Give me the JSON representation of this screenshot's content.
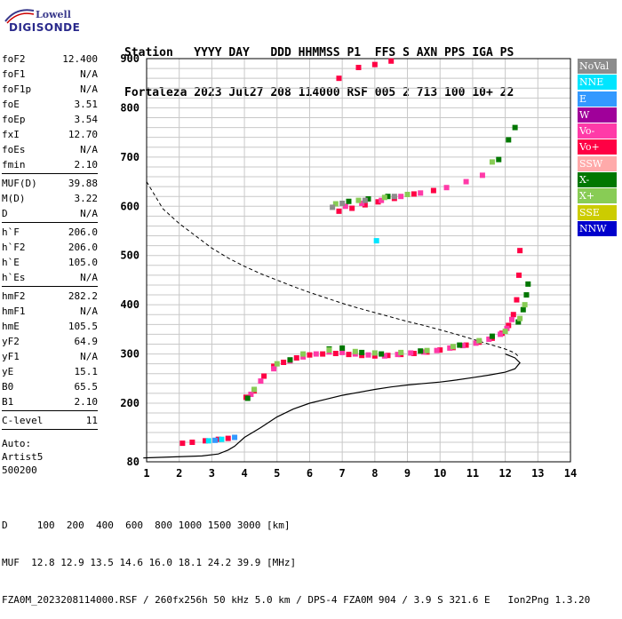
{
  "logo": {
    "line1": "Lowell",
    "line2": "DIGISONDE"
  },
  "header": {
    "line1": "Station   YYYY DAY   DDD HHMMSS P1  FFS S AXN PPS IGA PS",
    "line2": "Fortaleza 2023 Jul27 208 114000 RSF 005 2 713 100 10+ 22"
  },
  "params": {
    "group1": [
      {
        "k": "foF2",
        "v": "12.400"
      },
      {
        "k": "foF1",
        "v": "N/A"
      },
      {
        "k": "foF1p",
        "v": "N/A"
      },
      {
        "k": "foE",
        "v": "3.51"
      },
      {
        "k": "foEp",
        "v": "3.54"
      },
      {
        "k": "fxI",
        "v": "12.70"
      },
      {
        "k": "foEs",
        "v": "N/A"
      },
      {
        "k": "fmin",
        "v": "2.10"
      }
    ],
    "group2": [
      {
        "k": "MUF(D)",
        "v": "39.88"
      },
      {
        "k": "M(D)",
        "v": "3.22"
      },
      {
        "k": "D",
        "v": "N/A"
      }
    ],
    "group3": [
      {
        "k": "h`F",
        "v": "206.0"
      },
      {
        "k": "h`F2",
        "v": "206.0"
      },
      {
        "k": "h`E",
        "v": "105.0"
      },
      {
        "k": "h`Es",
        "v": "N/A"
      }
    ],
    "group4": [
      {
        "k": "hmF2",
        "v": "282.2"
      },
      {
        "k": "hmF1",
        "v": "N/A"
      },
      {
        "k": "hmE",
        "v": "105.5"
      },
      {
        "k": "yF2",
        "v": "64.9"
      },
      {
        "k": "yF1",
        "v": "N/A"
      },
      {
        "k": "yE",
        "v": "15.1"
      },
      {
        "k": "B0",
        "v": "65.5"
      },
      {
        "k": "B1",
        "v": "2.10"
      }
    ],
    "group5": [
      {
        "k": "C-level",
        "v": "11"
      }
    ],
    "auto": [
      "Auto:",
      "Artist5",
      "500200"
    ]
  },
  "legend": [
    {
      "label": "NoVal",
      "color": "#8c8c8c"
    },
    {
      "label": "NNE",
      "color": "#00e5ff"
    },
    {
      "label": "E",
      "color": "#3399ff"
    },
    {
      "label": "W",
      "color": "#a0009a"
    },
    {
      "label": "Vo-",
      "color": "#ff3aa8"
    },
    {
      "label": "Vo+",
      "color": "#ff0044"
    },
    {
      "label": "SSW",
      "color": "#ffaaaa"
    },
    {
      "label": "X-",
      "color": "#007700"
    },
    {
      "label": "X+",
      "color": "#88cc55"
    },
    {
      "label": "SSE",
      "color": "#cccc00"
    },
    {
      "label": "NNW",
      "color": "#0000cc"
    }
  ],
  "footer": {
    "line1": "D     100  200  400  600  800 1000 1500 3000 [km]",
    "line2": "MUF  12.8 12.9 13.5 14.6 16.0 18.1 24.2 39.9 [MHz]",
    "line3": "FZA0M_2023208114000.RSF / 260fx256h 50 kHz 5.0 km / DPS-4 FZA0M 904 / 3.9 S 321.6 E   Ion2Png 1.3.20"
  },
  "chart_data": {
    "type": "scatter",
    "xlabel": "",
    "ylabel": "",
    "xlim": [
      1,
      14
    ],
    "ylim": [
      80,
      900
    ],
    "grid": true,
    "xticks": [
      1,
      2,
      3,
      4,
      5,
      6,
      7,
      8,
      9,
      10,
      11,
      12,
      13,
      14
    ],
    "yticks": [
      80,
      200,
      300,
      400,
      500,
      600,
      700,
      800,
      900
    ],
    "series": [
      {
        "name": "Vo+",
        "color": "#ff0044",
        "points": [
          [
            2.1,
            118
          ],
          [
            2.4,
            120
          ],
          [
            2.8,
            123
          ],
          [
            3.2,
            126
          ],
          [
            3.5,
            128
          ],
          [
            4.05,
            212
          ],
          [
            4.3,
            225
          ],
          [
            4.6,
            255
          ],
          [
            4.9,
            275
          ],
          [
            5.2,
            283
          ],
          [
            5.6,
            292
          ],
          [
            6.0,
            298
          ],
          [
            6.4,
            300
          ],
          [
            6.8,
            301
          ],
          [
            7.2,
            299
          ],
          [
            7.6,
            297
          ],
          [
            8.0,
            296
          ],
          [
            8.4,
            297
          ],
          [
            8.8,
            299
          ],
          [
            9.2,
            301
          ],
          [
            9.6,
            304
          ],
          [
            10.0,
            308
          ],
          [
            10.4,
            313
          ],
          [
            10.8,
            318
          ],
          [
            11.2,
            324
          ],
          [
            11.6,
            332
          ],
          [
            11.9,
            342
          ],
          [
            12.1,
            358
          ],
          [
            12.25,
            380
          ],
          [
            12.35,
            410
          ],
          [
            12.42,
            460
          ],
          [
            12.45,
            510
          ],
          [
            6.9,
            590
          ],
          [
            7.3,
            596
          ],
          [
            7.7,
            603
          ],
          [
            8.1,
            609
          ],
          [
            8.6,
            616
          ],
          [
            9.2,
            625
          ],
          [
            9.8,
            632
          ],
          [
            6.9,
            860
          ],
          [
            7.5,
            882
          ],
          [
            8.0,
            888
          ],
          [
            8.5,
            895
          ]
        ]
      },
      {
        "name": "Vo-",
        "color": "#ff3aa8",
        "points": [
          [
            4.2,
            218
          ],
          [
            4.5,
            245
          ],
          [
            4.9,
            270
          ],
          [
            5.4,
            286
          ],
          [
            5.8,
            294
          ],
          [
            6.2,
            300
          ],
          [
            6.6,
            304
          ],
          [
            7.0,
            303
          ],
          [
            7.4,
            300
          ],
          [
            7.8,
            298
          ],
          [
            8.3,
            296
          ],
          [
            8.7,
            299
          ],
          [
            9.1,
            302
          ],
          [
            9.5,
            304
          ],
          [
            9.9,
            307
          ],
          [
            10.3,
            312
          ],
          [
            10.7,
            317
          ],
          [
            11.1,
            322
          ],
          [
            11.5,
            330
          ],
          [
            11.85,
            340
          ],
          [
            12.05,
            352
          ],
          [
            12.2,
            370
          ],
          [
            7.1,
            600
          ],
          [
            7.6,
            606
          ],
          [
            8.2,
            612
          ],
          [
            8.8,
            620
          ],
          [
            9.4,
            627
          ],
          [
            10.2,
            638
          ],
          [
            10.8,
            650
          ],
          [
            11.3,
            663
          ]
        ]
      },
      {
        "name": "X-",
        "color": "#007700",
        "points": [
          [
            4.1,
            210
          ],
          [
            5.4,
            288
          ],
          [
            6.6,
            310
          ],
          [
            7.0,
            312
          ],
          [
            7.6,
            303
          ],
          [
            8.2,
            300
          ],
          [
            9.4,
            306
          ],
          [
            10.6,
            318
          ],
          [
            11.6,
            336
          ],
          [
            12.4,
            365
          ],
          [
            12.55,
            390
          ],
          [
            12.65,
            420
          ],
          [
            12.7,
            442
          ],
          [
            7.2,
            610
          ],
          [
            7.8,
            615
          ],
          [
            8.4,
            620
          ],
          [
            11.8,
            695
          ],
          [
            12.1,
            735
          ],
          [
            12.3,
            760
          ]
        ]
      },
      {
        "name": "X+",
        "color": "#88cc55",
        "points": [
          [
            4.3,
            228
          ],
          [
            5.0,
            280
          ],
          [
            5.8,
            300
          ],
          [
            6.6,
            308
          ],
          [
            7.4,
            305
          ],
          [
            8.0,
            302
          ],
          [
            8.8,
            303
          ],
          [
            9.6,
            307
          ],
          [
            10.4,
            315
          ],
          [
            11.2,
            327
          ],
          [
            12.0,
            346
          ],
          [
            12.45,
            372
          ],
          [
            12.6,
            400
          ],
          [
            6.8,
            605
          ],
          [
            7.5,
            612
          ],
          [
            8.3,
            618
          ],
          [
            9.0,
            624
          ],
          [
            11.6,
            690
          ]
        ]
      },
      {
        "name": "NNE",
        "color": "#00e5ff",
        "points": [
          [
            2.9,
            123
          ],
          [
            3.3,
            126
          ],
          [
            8.05,
            530
          ]
        ]
      },
      {
        "name": "E",
        "color": "#3399ff",
        "points": [
          [
            3.1,
            124
          ],
          [
            3.7,
            130
          ]
        ]
      },
      {
        "name": "NoVal",
        "color": "#8c8c8c",
        "points": [
          [
            6.7,
            598
          ],
          [
            7.0,
            606
          ],
          [
            7.7,
            612
          ],
          [
            8.6,
            620
          ]
        ]
      }
    ],
    "profile_curve": [
      [
        0.9,
        88
      ],
      [
        1.8,
        90
      ],
      [
        2.7,
        92
      ],
      [
        3.2,
        96
      ],
      [
        3.5,
        104
      ],
      [
        3.7,
        112
      ],
      [
        4.0,
        130
      ],
      [
        4.5,
        150
      ],
      [
        5.0,
        172
      ],
      [
        5.5,
        188
      ],
      [
        6.0,
        200
      ],
      [
        6.5,
        208
      ],
      [
        7.0,
        216
      ],
      [
        7.5,
        222
      ],
      [
        8.0,
        228
      ],
      [
        8.5,
        233
      ],
      [
        9.0,
        237
      ],
      [
        9.5,
        240
      ],
      [
        10.0,
        243
      ],
      [
        10.5,
        247
      ],
      [
        11.0,
        252
      ],
      [
        11.5,
        257
      ],
      [
        12.0,
        263
      ],
      [
        12.3,
        270
      ],
      [
        12.45,
        282
      ],
      [
        12.3,
        292
      ],
      [
        12.0,
        300
      ]
    ],
    "muf_curve": [
      [
        1.0,
        650
      ],
      [
        1.5,
        595
      ],
      [
        2.0,
        565
      ],
      [
        2.5,
        540
      ],
      [
        3.0,
        515
      ],
      [
        3.5,
        495
      ],
      [
        4.0,
        478
      ],
      [
        4.5,
        463
      ],
      [
        5.0,
        450
      ],
      [
        5.5,
        437
      ],
      [
        6.0,
        425
      ],
      [
        6.5,
        414
      ],
      [
        7.0,
        403
      ],
      [
        7.5,
        393
      ],
      [
        8.0,
        384
      ],
      [
        8.5,
        375
      ],
      [
        9.0,
        366
      ],
      [
        9.5,
        358
      ],
      [
        10.0,
        349
      ],
      [
        10.5,
        340
      ],
      [
        11.0,
        330
      ],
      [
        11.5,
        320
      ],
      [
        12.0,
        310
      ],
      [
        12.3,
        302
      ],
      [
        12.4,
        295
      ]
    ]
  }
}
